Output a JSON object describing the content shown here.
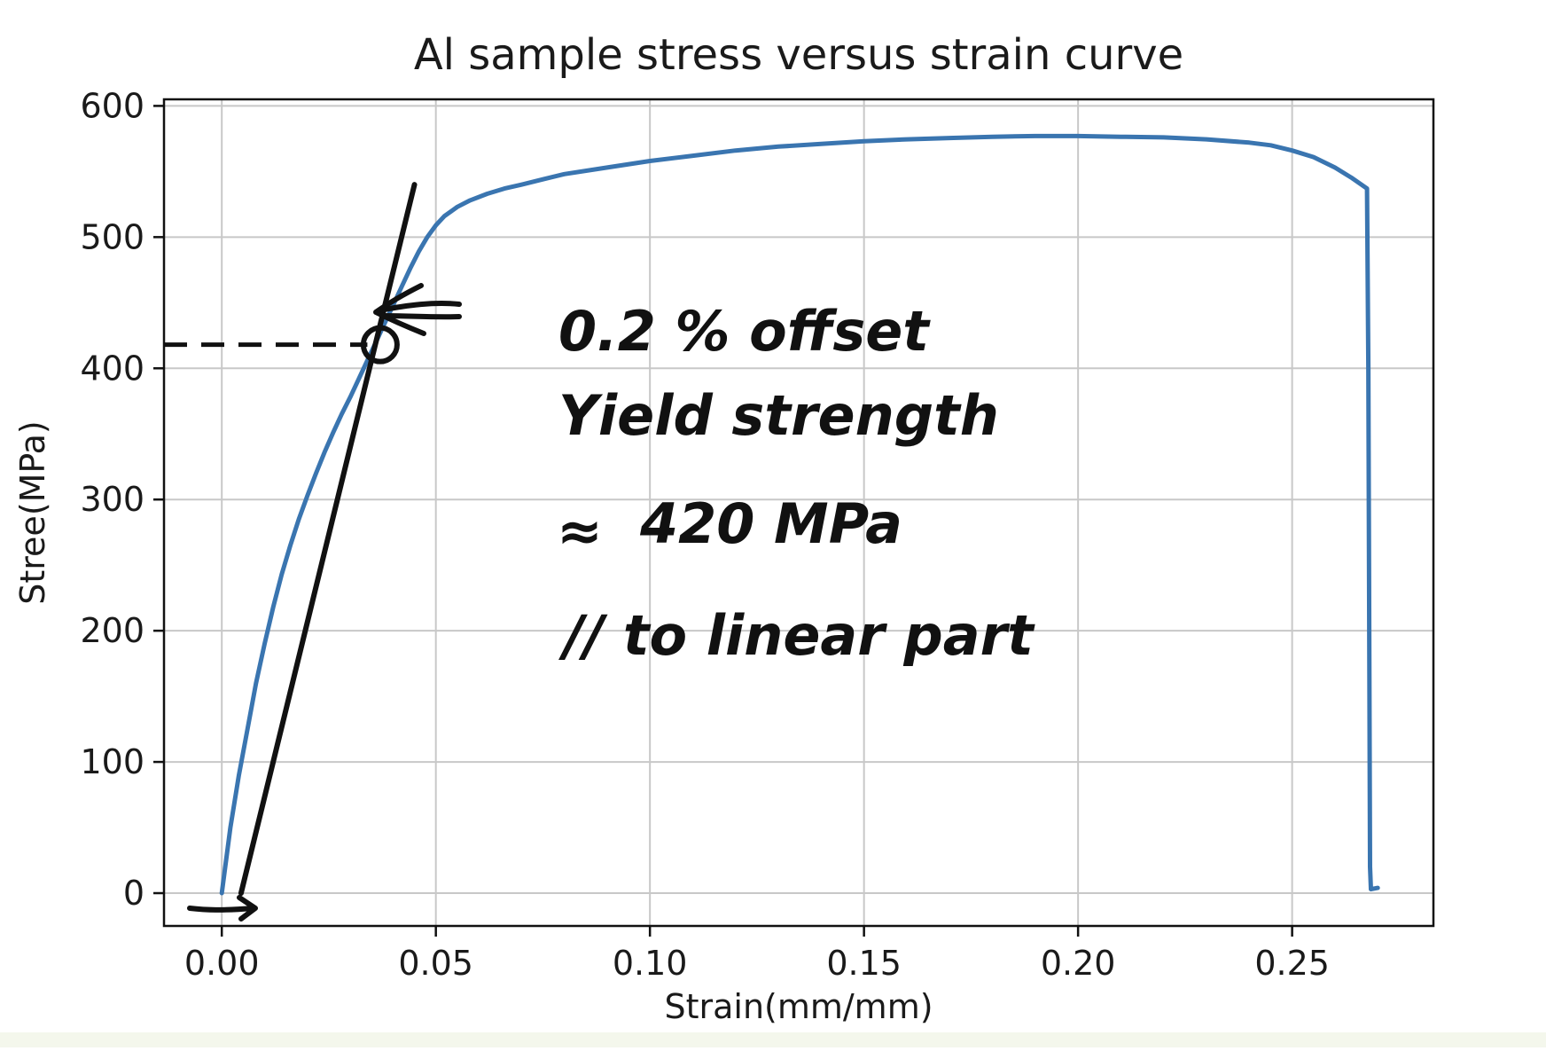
{
  "chart_data": {
    "type": "line",
    "title": "Al sample stress versus strain curve",
    "xlabel": "Strain(mm/mm)",
    "ylabel": "Stree(MPa)",
    "xlim": [
      -0.0135,
      0.283
    ],
    "ylim": [
      -25,
      605
    ],
    "xticks": [
      0.0,
      0.05,
      0.1,
      0.15,
      0.2,
      0.25
    ],
    "xtick_labels": [
      "0.00",
      "0.05",
      "0.10",
      "0.15",
      "0.20",
      "0.25"
    ],
    "yticks": [
      0,
      100,
      200,
      300,
      400,
      500,
      600
    ],
    "ytick_labels": [
      "0",
      "100",
      "200",
      "300",
      "400",
      "500",
      "600"
    ],
    "grid": true,
    "series": [
      {
        "color": "#3a75b0",
        "x": [
          0.0,
          0.002,
          0.004,
          0.006,
          0.008,
          0.01,
          0.012,
          0.014,
          0.016,
          0.018,
          0.02,
          0.022,
          0.024,
          0.026,
          0.028,
          0.03,
          0.032,
          0.034,
          0.036,
          0.038,
          0.04,
          0.042,
          0.044,
          0.046,
          0.048,
          0.05,
          0.052,
          0.055,
          0.058,
          0.062,
          0.066,
          0.07,
          0.075,
          0.08,
          0.09,
          0.1,
          0.11,
          0.12,
          0.13,
          0.14,
          0.15,
          0.16,
          0.17,
          0.18,
          0.19,
          0.2,
          0.21,
          0.22,
          0.23,
          0.24,
          0.245,
          0.25,
          0.255,
          0.26,
          0.264,
          0.2675,
          0.2678,
          0.268,
          0.2682,
          0.2684,
          0.27
        ],
        "y": [
          0,
          50,
          90,
          125,
          160,
          190,
          218,
          243,
          265,
          285,
          303,
          320,
          336,
          351,
          365,
          378,
          392,
          406,
          420,
          434,
          448,
          462,
          476,
          489,
          500,
          509,
          516,
          523,
          528,
          533,
          537,
          540,
          544,
          548,
          553,
          558,
          562,
          566,
          569,
          571,
          573,
          574.5,
          575.5,
          576.5,
          577,
          577,
          576.5,
          576,
          574.5,
          572,
          570,
          566,
          561,
          553,
          545,
          537,
          400,
          200,
          20,
          3,
          4
        ]
      }
    ],
    "annotations": {
      "circled_point": {
        "x": 0.037,
        "y": 418
      },
      "offset_line": {
        "x0": 0.0045,
        "y0": 0,
        "x1": 0.045,
        "y1": 540
      },
      "dashed_line": {
        "x0": -0.0135,
        "y0": 418,
        "x1": 0.034,
        "y1": 418
      },
      "note_lines": [
        "0.2 % offset",
        "Yield strength",
        "420 MPa",
        "// to linear part"
      ],
      "approx_symbol": "≈"
    }
  }
}
